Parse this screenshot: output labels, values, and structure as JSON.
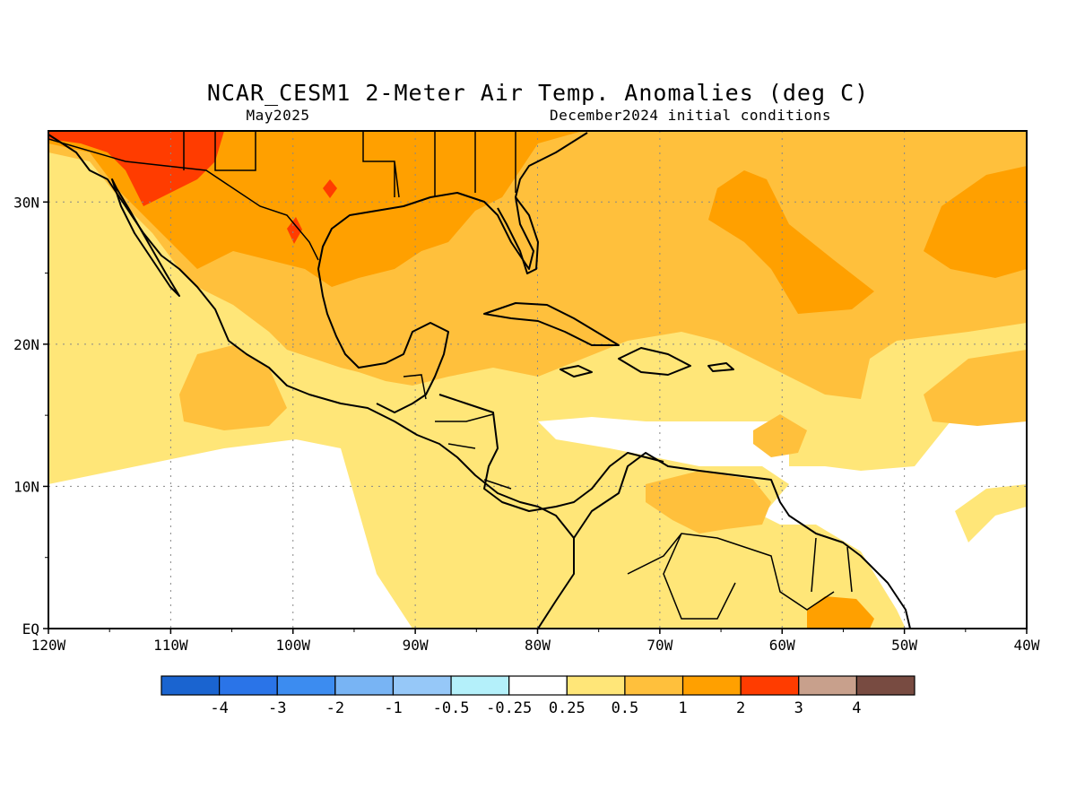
{
  "title": "NCAR_CESM1 2-Meter Air Temp. Anomalies (deg C)",
  "subtitle_left": "May2025",
  "subtitle_right": "December2024 initial conditions",
  "map": {
    "lon_range": [
      -120,
      -40
    ],
    "lat_range": [
      0,
      35
    ],
    "x_ticks": [
      {
        "value": -120,
        "label": "120W"
      },
      {
        "value": -110,
        "label": "110W"
      },
      {
        "value": -100,
        "label": "100W"
      },
      {
        "value": -90,
        "label": "90W"
      },
      {
        "value": -80,
        "label": "80W"
      },
      {
        "value": -70,
        "label": "70W"
      },
      {
        "value": -60,
        "label": "60W"
      },
      {
        "value": -50,
        "label": "50W"
      },
      {
        "value": -40,
        "label": "40W"
      }
    ],
    "y_ticks": [
      {
        "value": 0,
        "label": "EQ"
      },
      {
        "value": 10,
        "label": "10N"
      },
      {
        "value": 20,
        "label": "20N"
      },
      {
        "value": 30,
        "label": "30N"
      }
    ],
    "grid": true
  },
  "colorbar": {
    "colors": [
      "#1a64d0",
      "#2a74e8",
      "#3c8cf0",
      "#78b4f4",
      "#96c8f8",
      "#b4f0fa",
      "#ffffff",
      "#ffe678",
      "#ffc03c",
      "#ffa000",
      "#ff3c00",
      "#c8a08c",
      "#784b41"
    ],
    "labels": [
      "-4",
      "-3",
      "-2",
      "-1",
      "-0.5",
      "-0.25",
      "0.25",
      "0.5",
      "1",
      "2",
      "3",
      "4"
    ]
  },
  "colors": {
    "c025": "#ffe678",
    "c05": "#ffc03c",
    "c1": "#ffa000",
    "c2": "#ff3c00"
  }
}
